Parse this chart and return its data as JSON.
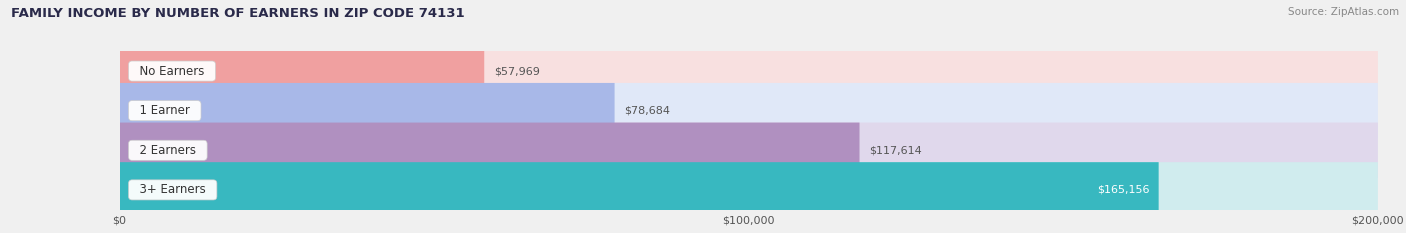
{
  "title": "FAMILY INCOME BY NUMBER OF EARNERS IN ZIP CODE 74131",
  "source": "Source: ZipAtlas.com",
  "categories": [
    "No Earners",
    "1 Earner",
    "2 Earners",
    "3+ Earners"
  ],
  "values": [
    57969,
    78684,
    117614,
    165156
  ],
  "value_labels": [
    "$57,969",
    "$78,684",
    "$117,614",
    "$165,156"
  ],
  "bar_colors": [
    "#f0a0a0",
    "#a8b8e8",
    "#b090c0",
    "#38b8c0"
  ],
  "bar_bg_colors": [
    "#f8e0e0",
    "#e0e8f8",
    "#e0d8ec",
    "#d0ecee"
  ],
  "xlim": [
    0,
    200000
  ],
  "xtick_labels": [
    "$0",
    "$100,000",
    "$200,000"
  ],
  "xtick_values": [
    0,
    100000,
    200000
  ],
  "background_color": "#f0f0f0",
  "title_color": "#2a2a4a",
  "source_color": "#888888",
  "label_text_color": "#333333",
  "value_text_color_dark": "#555555",
  "value_text_color_light": "#ffffff"
}
